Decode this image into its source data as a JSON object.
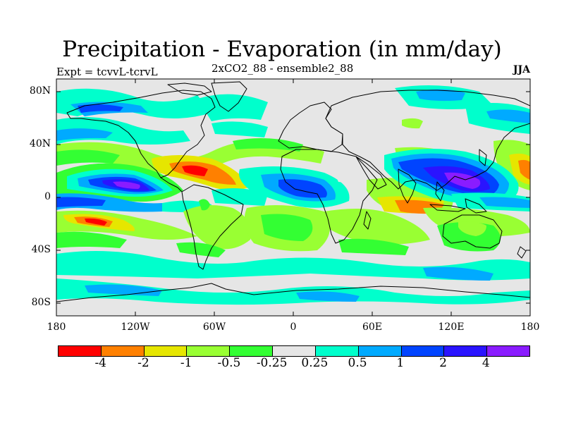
{
  "title": "Precipitation - Evaporation (in mm/day)",
  "subtitle_left": "Expt = tcvvL-tcrvL",
  "subtitle_center": "2xCO2_88 - ensemble2_88",
  "subtitle_right": "JJA",
  "y_labels": [
    "80N",
    "40N",
    "0",
    "40S",
    "80S"
  ],
  "x_labels": [
    "180",
    "120W",
    "60W",
    "0",
    "60E",
    "120E",
    "180"
  ],
  "colorbar": {
    "labels": [
      "-4",
      "-2",
      "-1",
      "-0.5",
      "-0.25",
      "0.25",
      "0.5",
      "1",
      "2",
      "4"
    ],
    "colors": [
      "#ff0000",
      "#ff8000",
      "#e6e600",
      "#99ff33",
      "#33ff33",
      "#e6e6e6",
      "#00ffcc",
      "#00aaff",
      "#0044ff",
      "#2a14ff",
      "#8a1cff"
    ]
  }
}
